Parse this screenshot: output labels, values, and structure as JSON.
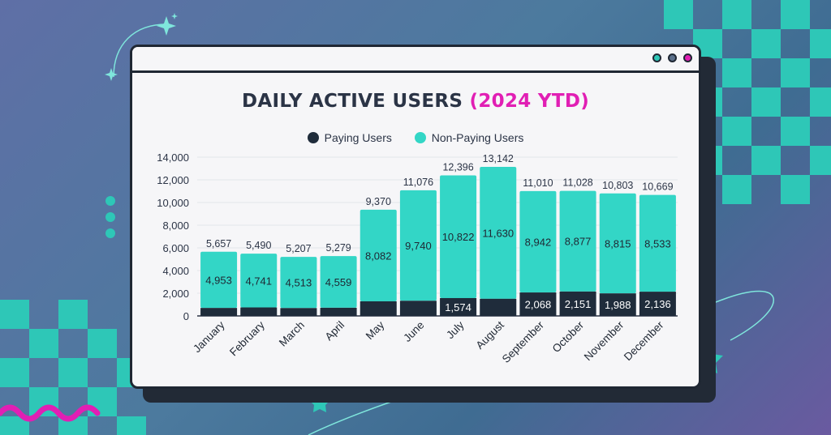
{
  "title": {
    "main": "DAILY ACTIVE USERS ",
    "accent": "(2024 YTD)"
  },
  "legend": [
    {
      "label": "Paying Users",
      "color": "#1f2c3b"
    },
    {
      "label": "Non-Paying Users",
      "color": "#33d6c6"
    }
  ],
  "colors": {
    "paying": "#1f2c3b",
    "non_paying": "#33d6c6",
    "accent": "#e11fb4",
    "window_dot_1": "#2ec7b7",
    "window_dot_2": "#5b6f8a",
    "window_dot_3": "#e11fb4"
  },
  "chart_data": {
    "type": "bar",
    "stacked": true,
    "title": "DAILY ACTIVE USERS (2024 YTD)",
    "categories": [
      "January",
      "February",
      "March",
      "April",
      "May",
      "June",
      "July",
      "August",
      "September",
      "October",
      "November",
      "December"
    ],
    "series": [
      {
        "name": "Paying Users",
        "values": [
          704,
          749,
          694,
          720,
          1288,
          1336,
          1574,
          1512,
          2068,
          2151,
          1988,
          2136
        ]
      },
      {
        "name": "Non-Paying Users",
        "values": [
          4953,
          4741,
          4513,
          4559,
          8082,
          9740,
          10822,
          11630,
          8942,
          8877,
          8815,
          8533
        ]
      }
    ],
    "totals": [
      5657,
      5490,
      5207,
      5279,
      9370,
      11076,
      12396,
      13142,
      11010,
      11028,
      10803,
      10669
    ],
    "total_labels": [
      "5,657",
      "5,490",
      "5,207",
      "5,279",
      "9,370",
      "11,076",
      "12,396",
      "13,142",
      "11,010",
      "11,028",
      "10,803",
      "10,669"
    ],
    "non_paying_labels": [
      "4,953",
      "4,741",
      "4,513",
      "4,559",
      "8,082",
      "9,740",
      "10,822",
      "11,630",
      "8,942",
      "8,877",
      "8,815",
      "8,533"
    ],
    "paying_labels": [
      "",
      "",
      "",
      "",
      "",
      "",
      "1,574",
      "",
      "2,068",
      "2,151",
      "1,988",
      "2,136"
    ],
    "y_ticks": [
      "0",
      "2,000",
      "4,000",
      "6,000",
      "8,000",
      "10,000",
      "12,000",
      "14,000"
    ],
    "ylim": [
      0,
      14000
    ],
    "grid": true,
    "legend_position": "top-center",
    "xlabel": "",
    "ylabel": ""
  }
}
